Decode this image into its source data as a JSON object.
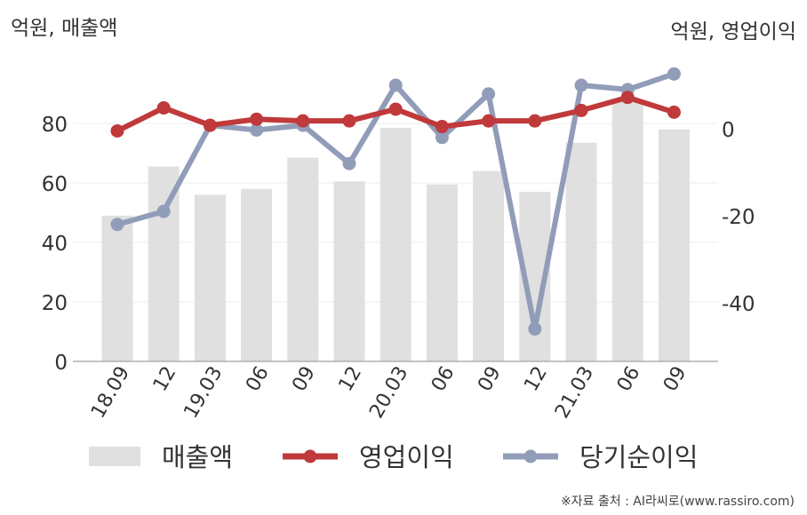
{
  "units": {
    "left": "억원, 매출액",
    "right": "억원, 영업이익"
  },
  "source_note": "※자료 출처 : AI라씨로(www.rassiro.com)",
  "chart_data": {
    "type": "bar",
    "categories": [
      "18.09",
      "12",
      "19.03",
      "06",
      "09",
      "12",
      "20.03",
      "06",
      "09",
      "12",
      "21.03",
      "06",
      "09"
    ],
    "series": [
      {
        "name": "매출액",
        "type": "bar",
        "axis": "left",
        "color": "#e0e0e0",
        "values": [
          49,
          65.5,
          56,
          58,
          68.5,
          60.5,
          78.5,
          59.5,
          64,
          57,
          73.5,
          88,
          78
        ]
      },
      {
        "name": "영업이익",
        "type": "line",
        "axis": "right",
        "color": "#c0393b",
        "values": [
          -0.5,
          4.8,
          0.8,
          2.2,
          1.8,
          1.8,
          4.5,
          0.5,
          1.8,
          1.8,
          4.2,
          7.2,
          3.8
        ]
      },
      {
        "name": "당기순이익",
        "type": "line",
        "axis": "right",
        "color": "#919db8",
        "values": [
          -22,
          -19,
          0.8,
          -0.3,
          0.8,
          -8,
          10,
          -2,
          8,
          -46,
          10,
          9,
          12.6
        ]
      }
    ],
    "y_left": {
      "ticks": [
        0,
        20,
        40,
        60,
        80
      ],
      "range": [
        0,
        100
      ]
    },
    "y_right": {
      "ticks": [
        0,
        -20,
        -40
      ],
      "range": [
        -53.5,
        15.5
      ]
    },
    "grid": true,
    "legend_position": "bottom"
  }
}
